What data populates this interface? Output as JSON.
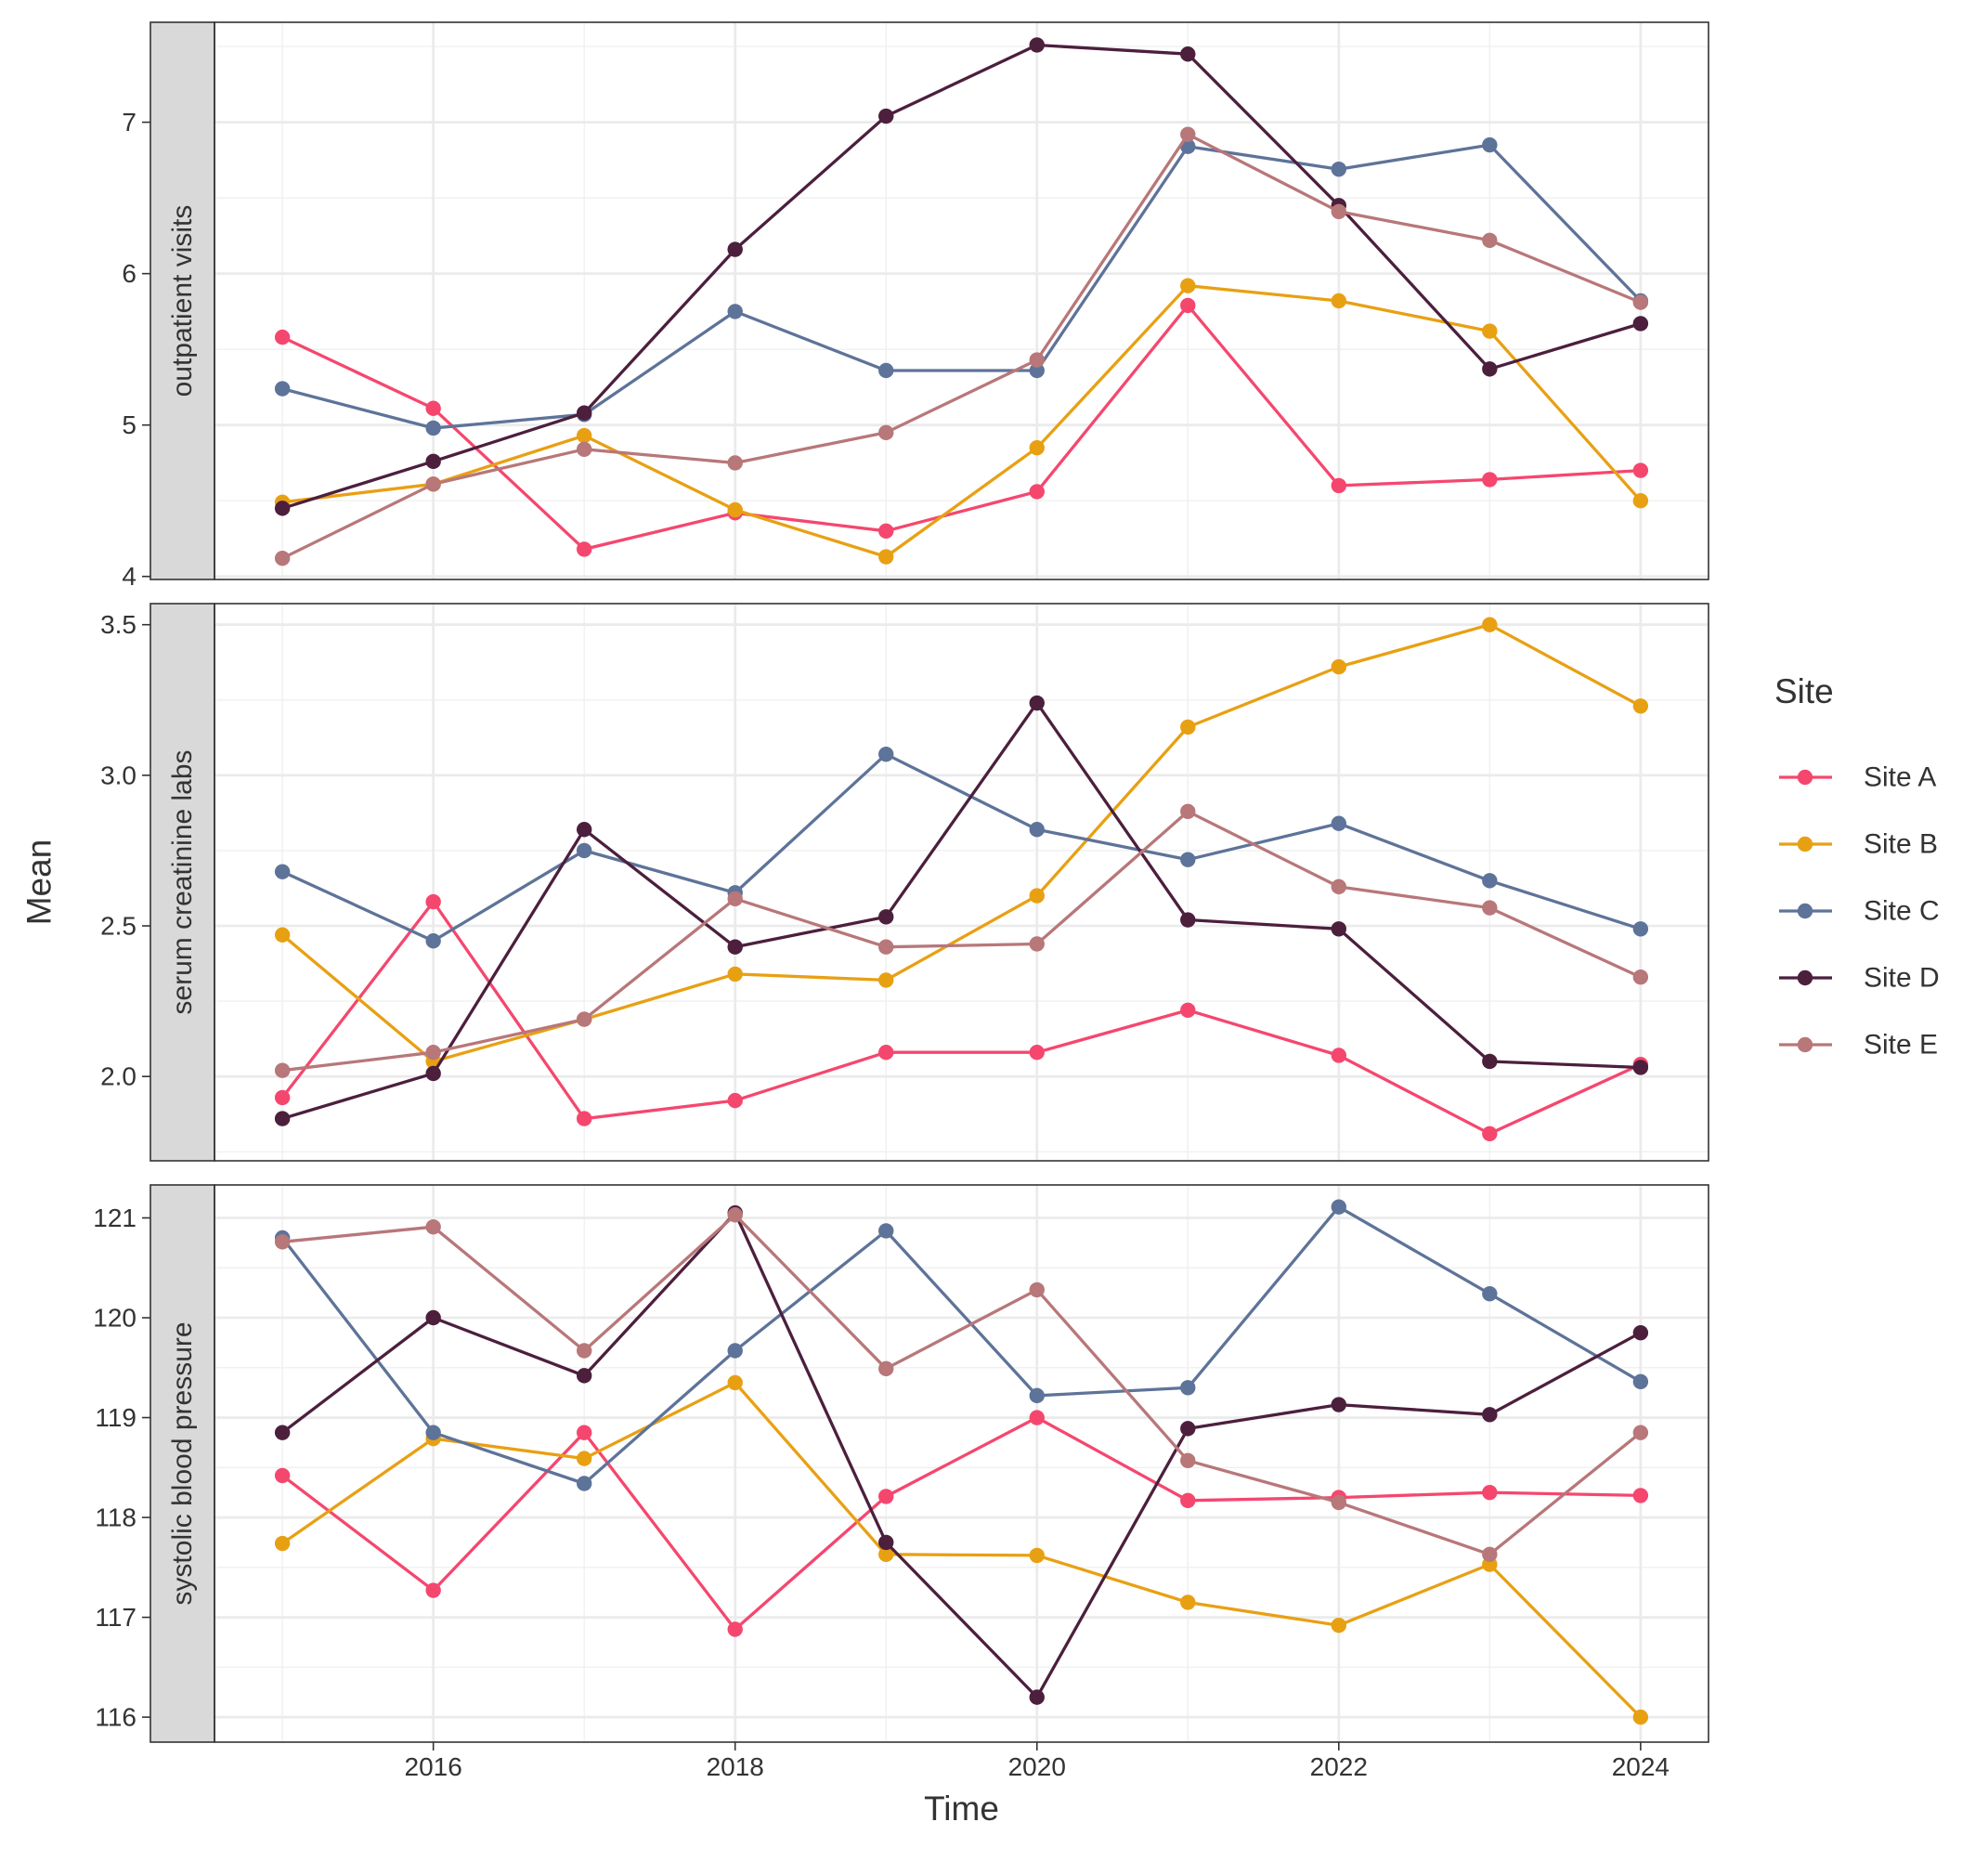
{
  "chart_data": {
    "type": "line",
    "xlabel": "Time",
    "ylabel": "Mean",
    "x": [
      2015,
      2016,
      2017,
      2018,
      2019,
      2020,
      2021,
      2022,
      2023,
      2024
    ],
    "x_ticks": [
      "2016",
      "2018",
      "2020",
      "2022",
      "2024"
    ],
    "xlim": [
      2014.55,
      2024.45
    ],
    "grid": true,
    "legend": {
      "title": "Site",
      "placement": "right",
      "entries": [
        "Site A",
        "Site B",
        "Site C",
        "Site D",
        "Site E"
      ]
    },
    "colors": {
      "Site A": "#F5476E",
      "Site B": "#E8A013",
      "Site C": "#5E7399",
      "Site D": "#4C1F3D",
      "Site E": "#B87779"
    },
    "panels": [
      {
        "strip": "outpatient visits",
        "ylim": [
          3.98,
          7.66
        ],
        "y_ticks": [
          "4",
          "5",
          "6",
          "7"
        ],
        "y_tick_values": [
          4,
          5,
          6,
          7
        ],
        "series": [
          {
            "name": "Site A",
            "values": [
              5.58,
              5.11,
              4.18,
              4.42,
              4.3,
              4.56,
              5.79,
              4.6,
              4.64,
              4.7
            ]
          },
          {
            "name": "Site B",
            "values": [
              4.49,
              4.61,
              4.93,
              4.44,
              4.13,
              4.85,
              5.92,
              5.82,
              5.62,
              4.5
            ]
          },
          {
            "name": "Site C",
            "values": [
              5.24,
              4.98,
              5.07,
              5.75,
              5.36,
              5.36,
              6.84,
              6.69,
              6.85,
              5.82
            ]
          },
          {
            "name": "Site D",
            "values": [
              4.45,
              4.76,
              5.08,
              6.16,
              7.04,
              7.51,
              7.45,
              6.45,
              5.37,
              5.67
            ]
          },
          {
            "name": "Site E",
            "values": [
              4.12,
              4.61,
              4.84,
              4.75,
              4.95,
              5.43,
              6.92,
              6.41,
              6.22,
              5.81
            ]
          }
        ]
      },
      {
        "strip": "serum creatinine labs",
        "ylim": [
          1.72,
          3.57
        ],
        "y_ticks": [
          "2.0",
          "2.5",
          "3.0",
          "3.5"
        ],
        "y_tick_values": [
          2.0,
          2.5,
          3.0,
          3.5
        ],
        "series": [
          {
            "name": "Site A",
            "values": [
              1.93,
              2.58,
              1.86,
              1.92,
              2.08,
              2.08,
              2.22,
              2.07,
              1.81,
              2.04
            ]
          },
          {
            "name": "Site B",
            "values": [
              2.47,
              2.05,
              2.19,
              2.34,
              2.32,
              2.6,
              3.16,
              3.36,
              3.5,
              3.23
            ]
          },
          {
            "name": "Site C",
            "values": [
              2.68,
              2.45,
              2.75,
              2.61,
              3.07,
              2.82,
              2.72,
              2.84,
              2.65,
              2.49
            ]
          },
          {
            "name": "Site D",
            "values": [
              1.86,
              2.01,
              2.82,
              2.43,
              2.53,
              3.24,
              2.52,
              2.49,
              2.05,
              2.03
            ]
          },
          {
            "name": "Site E",
            "values": [
              2.02,
              2.08,
              2.19,
              2.59,
              2.43,
              2.44,
              2.88,
              2.63,
              2.56,
              2.33
            ]
          }
        ]
      },
      {
        "strip": "systolic blood pressure",
        "ylim": [
          115.75,
          121.33
        ],
        "y_ticks": [
          "116",
          "117",
          "118",
          "119",
          "120",
          "121"
        ],
        "y_tick_values": [
          116,
          117,
          118,
          119,
          120,
          121
        ],
        "series": [
          {
            "name": "Site A",
            "values": [
              118.42,
              117.27,
              118.85,
              116.88,
              118.21,
              119.0,
              118.17,
              118.2,
              118.25,
              118.22
            ]
          },
          {
            "name": "Site B",
            "values": [
              117.74,
              118.79,
              118.59,
              119.35,
              117.63,
              117.62,
              117.15,
              116.92,
              117.53,
              116.0
            ]
          },
          {
            "name": "Site C",
            "values": [
              120.8,
              118.85,
              118.34,
              119.67,
              120.87,
              119.22,
              119.3,
              121.11,
              120.24,
              119.36
            ]
          },
          {
            "name": "Site D",
            "values": [
              118.85,
              120.0,
              119.42,
              121.05,
              117.75,
              116.2,
              118.89,
              119.13,
              119.03,
              119.85
            ]
          },
          {
            "name": "Site E",
            "values": [
              120.76,
              120.91,
              119.67,
              121.03,
              119.49,
              120.28,
              118.57,
              118.15,
              117.63,
              118.85
            ]
          }
        ]
      }
    ]
  }
}
